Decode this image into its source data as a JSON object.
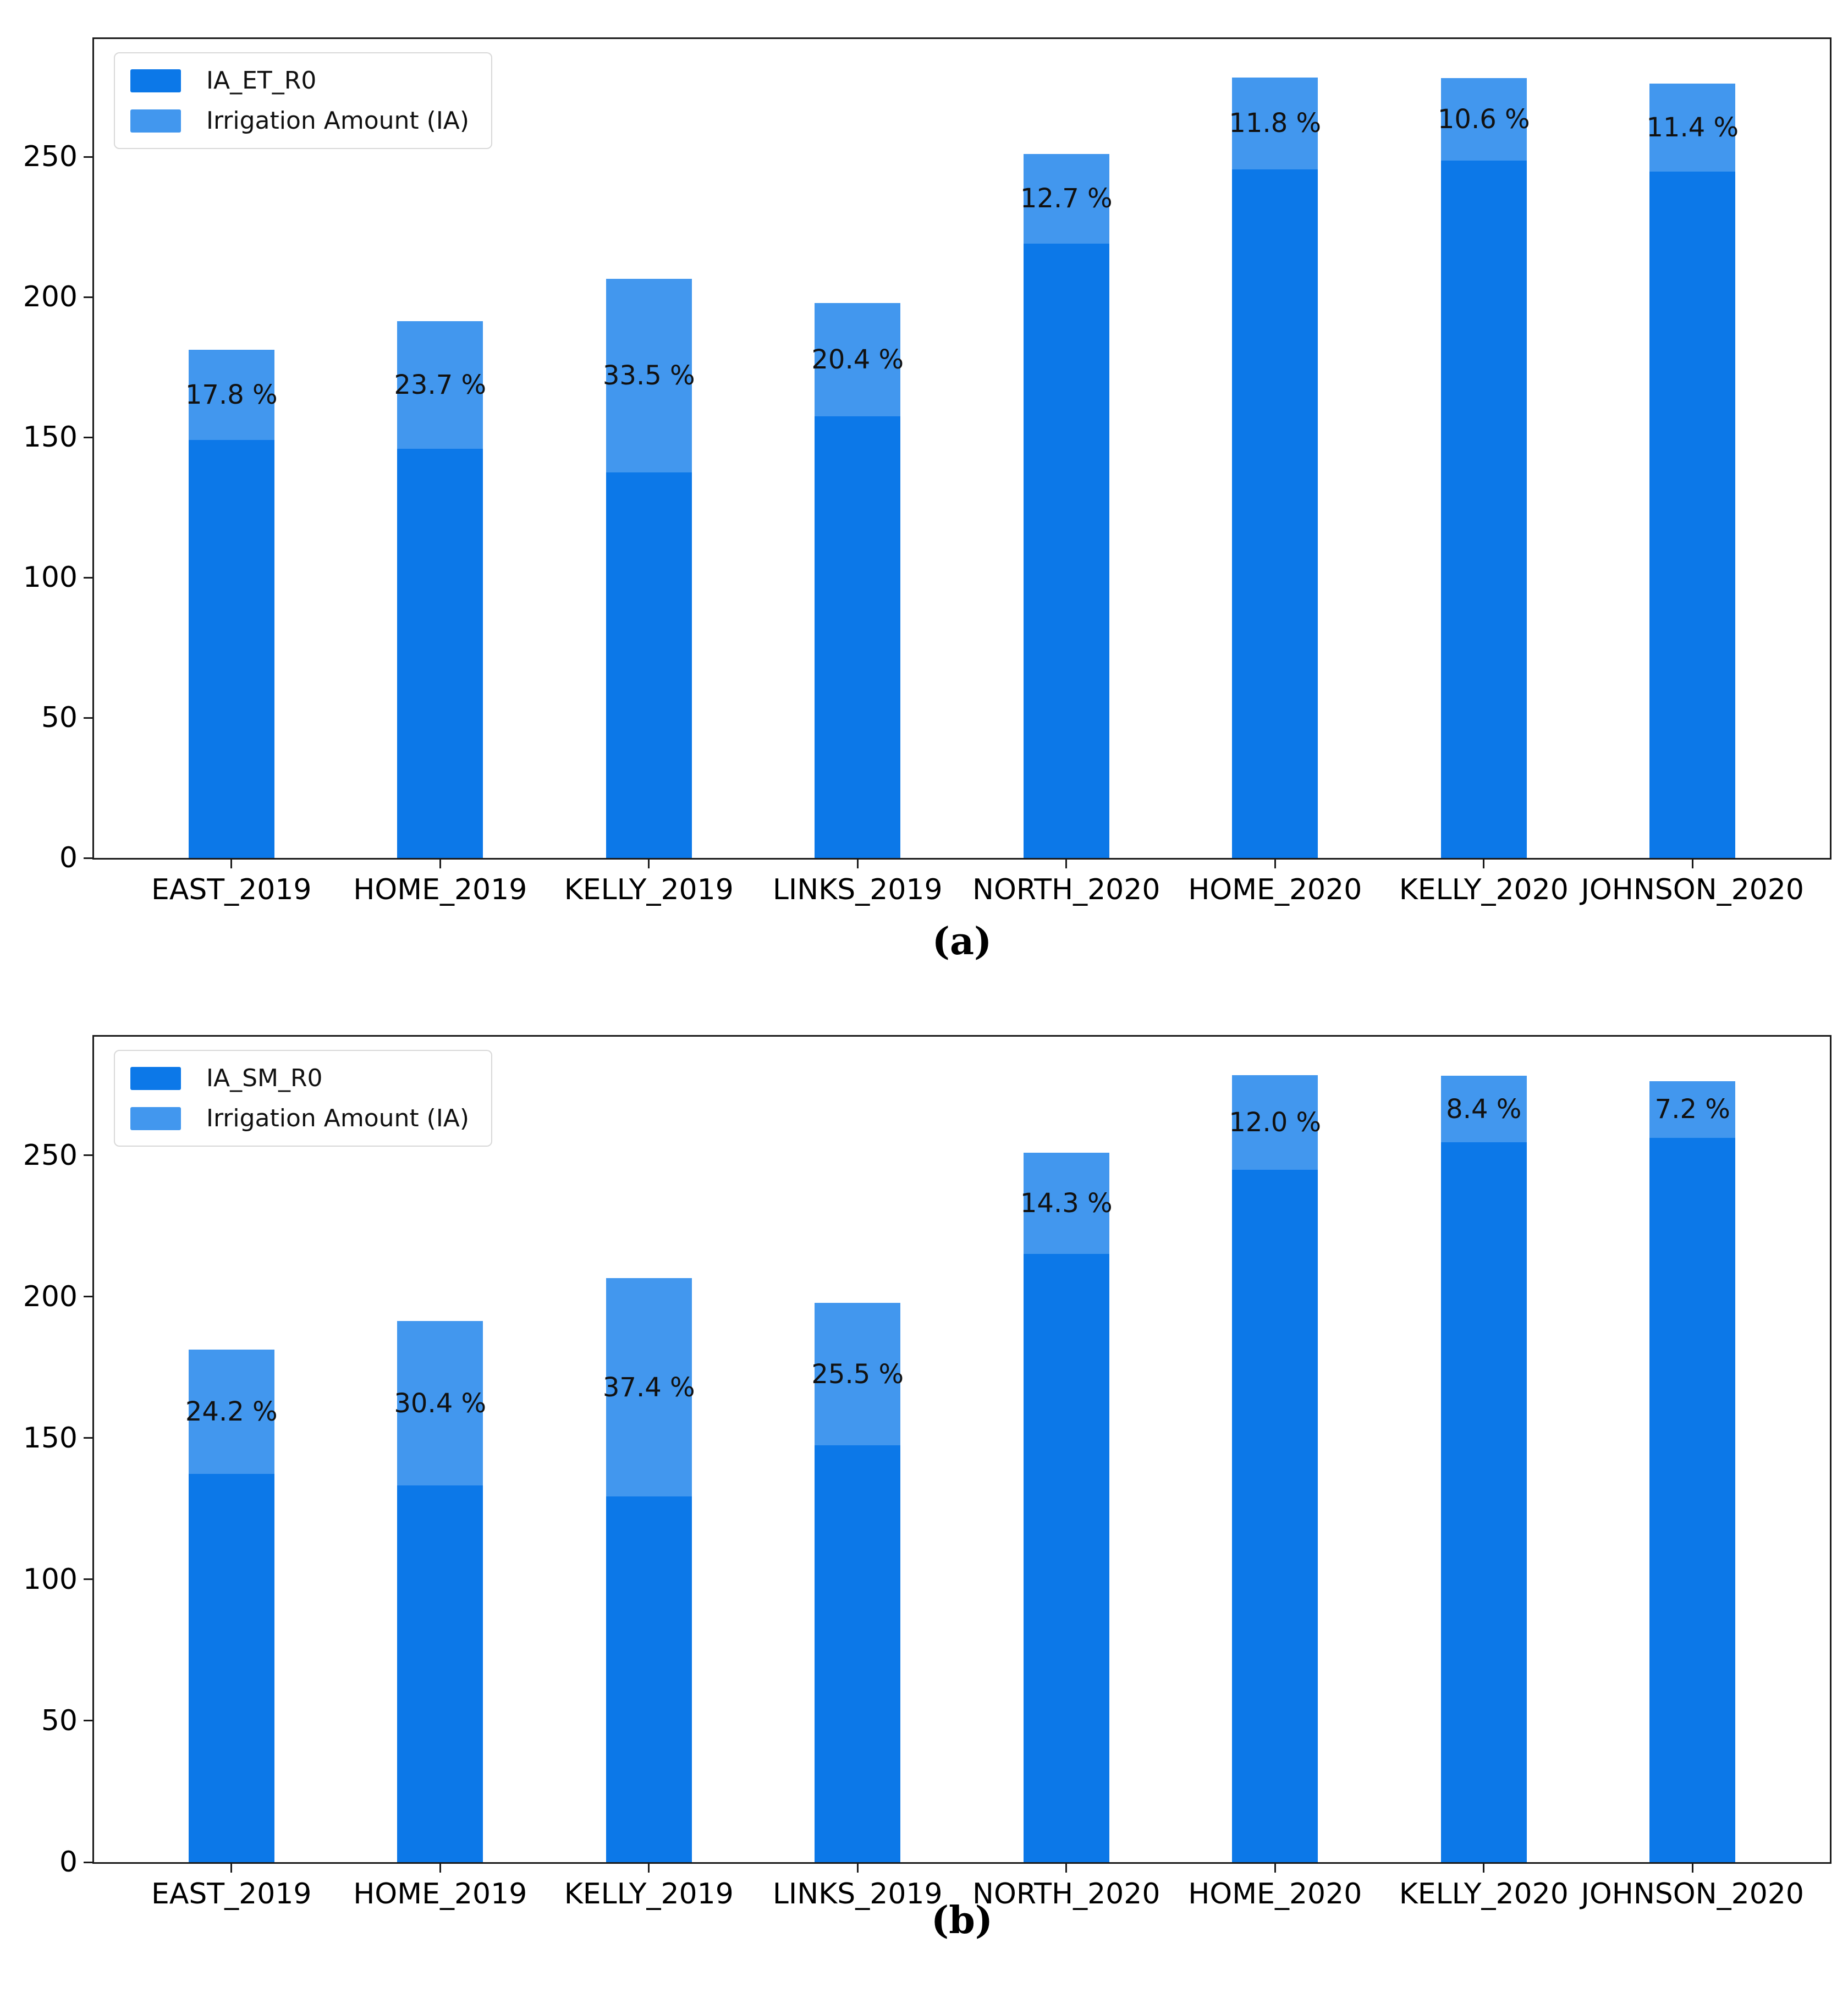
{
  "colors": {
    "background": "#ffffff",
    "bar_dark": "#0c78e8",
    "bar_light": "#4297ee",
    "axis": "#1a1a1a",
    "text": "#000000",
    "legend_border": "#d8d8d8"
  },
  "chart_data": [
    {
      "id": "a",
      "type": "bar",
      "stacked": true,
      "caption": "(a)",
      "grid": false,
      "legend_position": "upper-left",
      "categories": [
        "EAST_2019",
        "HOME_2019",
        "KELLY_2019",
        "LINKS_2019",
        "NORTH_2020",
        "HOME_2020",
        "KELLY_2020",
        "JOHNSON_2020"
      ],
      "series": [
        {
          "name": "IA_ET_R0",
          "color": "bar_dark",
          "values": [
            149.0,
            146.0,
            137.4,
            157.5,
            219.1,
            245.5,
            248.6,
            244.7
          ]
        },
        {
          "name": "Irrigation Amount (IA)",
          "color": "bar_light",
          "values": [
            32.3,
            45.4,
            69.2,
            40.4,
            31.9,
            32.8,
            29.5,
            31.5
          ]
        }
      ],
      "totals": [
        181.3,
        191.4,
        206.6,
        197.9,
        251.0,
        278.3,
        278.1,
        276.2
      ],
      "percent_labels": [
        "17.8 %",
        "23.7 %",
        "33.5 %",
        "20.4 %",
        "12.7 %",
        "11.8 %",
        "10.6 %",
        "11.4 %"
      ],
      "yticks": [
        0,
        50,
        100,
        150,
        200,
        250
      ],
      "ylim": [
        0,
        292
      ],
      "xlabel": "",
      "ylabel": ""
    },
    {
      "id": "b",
      "type": "bar",
      "stacked": true,
      "caption": "(b)",
      "grid": false,
      "legend_position": "upper-left",
      "categories": [
        "EAST_2019",
        "HOME_2019",
        "KELLY_2019",
        "LINKS_2019",
        "NORTH_2020",
        "HOME_2020",
        "KELLY_2020",
        "JOHNSON_2020"
      ],
      "series": [
        {
          "name": "IA_SM_R0",
          "color": "bar_dark",
          "values": [
            137.4,
            133.2,
            129.3,
            147.4,
            215.1,
            244.9,
            254.7,
            256.3
          ]
        },
        {
          "name": "Irrigation Amount (IA)",
          "color": "bar_light",
          "values": [
            43.9,
            58.2,
            77.3,
            50.5,
            35.9,
            33.4,
            23.4,
            19.9
          ]
        }
      ],
      "totals": [
        181.3,
        191.4,
        206.6,
        197.9,
        251.0,
        278.3,
        278.1,
        276.2
      ],
      "percent_labels": [
        "24.2 %",
        "30.4 %",
        "37.4 %",
        "25.5 %",
        "14.3 %",
        "12.0 %",
        "8.4 %",
        "7.2 %"
      ],
      "yticks": [
        0,
        50,
        100,
        150,
        200,
        250
      ],
      "ylim": [
        0,
        292
      ],
      "xlabel": "",
      "ylabel": ""
    }
  ]
}
